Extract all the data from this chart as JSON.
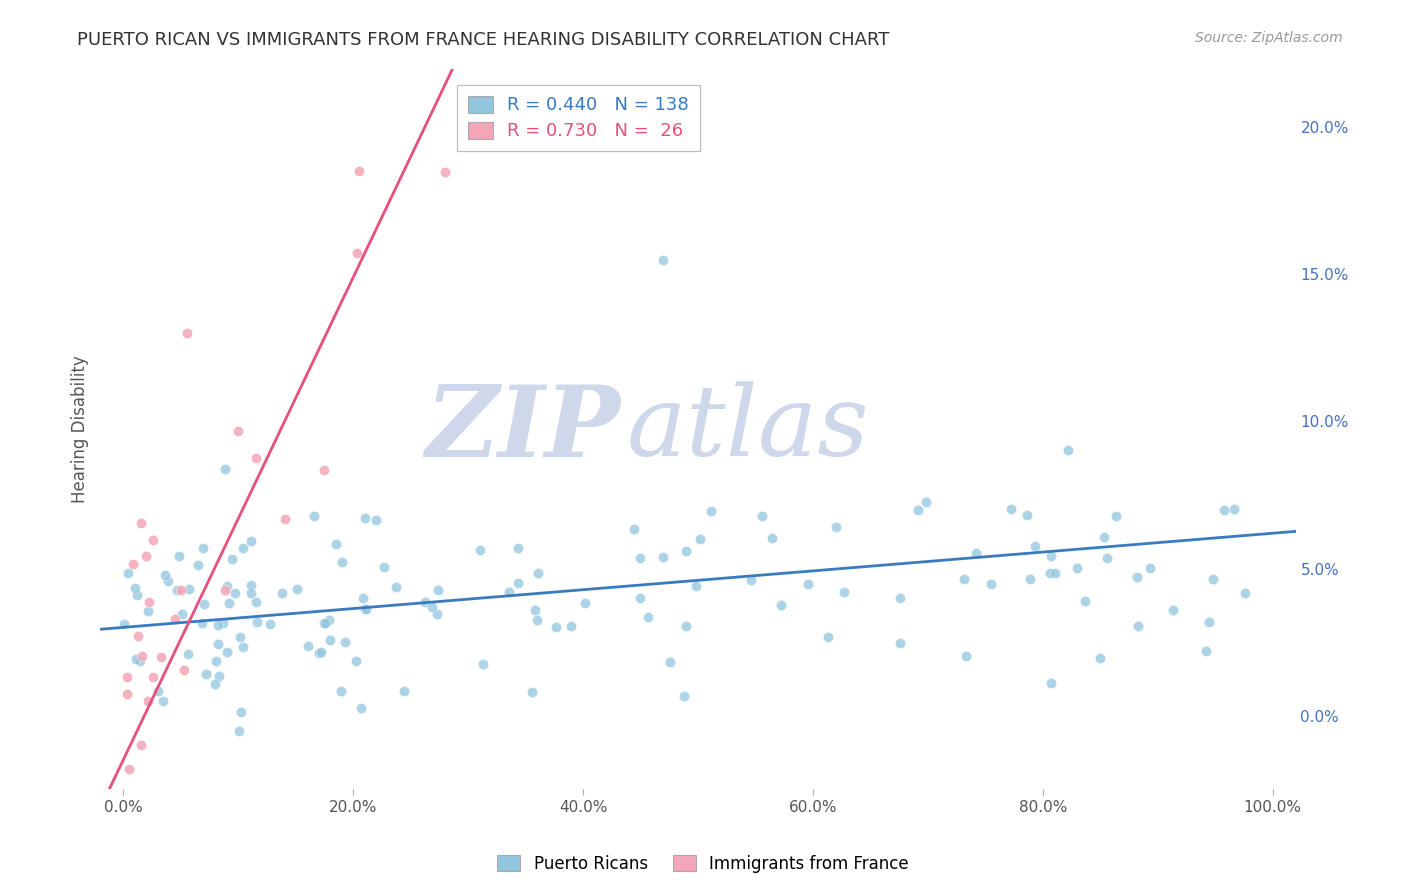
{
  "title": "PUERTO RICAN VS IMMIGRANTS FROM FRANCE HEARING DISABILITY CORRELATION CHART",
  "source": "Source: ZipAtlas.com",
  "ylabel": "Hearing Disability",
  "legend_label_1": "Puerto Ricans",
  "legend_label_2": "Immigrants from France",
  "R1": 0.44,
  "N1": 138,
  "R2": 0.73,
  "N2": 26,
  "color1": "#92c5de",
  "color2": "#f4a6b8",
  "trendline_color1": "#3a7bbf",
  "trendline_color2": "#e8507a",
  "xlim": [
    -2.0,
    102.0
  ],
  "ylim": [
    -2.5,
    22.0
  ],
  "yticks": [
    0.0,
    5.0,
    10.0,
    15.0,
    20.0
  ],
  "ytick_labels": [
    "0.0%",
    "5.0%",
    "10.0%",
    "15.0%",
    "20.0%"
  ],
  "xticks": [
    0.0,
    20.0,
    40.0,
    60.0,
    80.0,
    100.0
  ],
  "xtick_labels": [
    "0.0%",
    "20.0%",
    "40.0%",
    "60.0%",
    "80.0%",
    "100.0%"
  ],
  "watermark_zip": "ZIP",
  "watermark_atlas": "atlas",
  "background_color": "#ffffff",
  "grid_color": "#e0e0e0",
  "title_fontsize": 13,
  "source_fontsize": 10,
  "watermark_color": "#cfd8ea"
}
